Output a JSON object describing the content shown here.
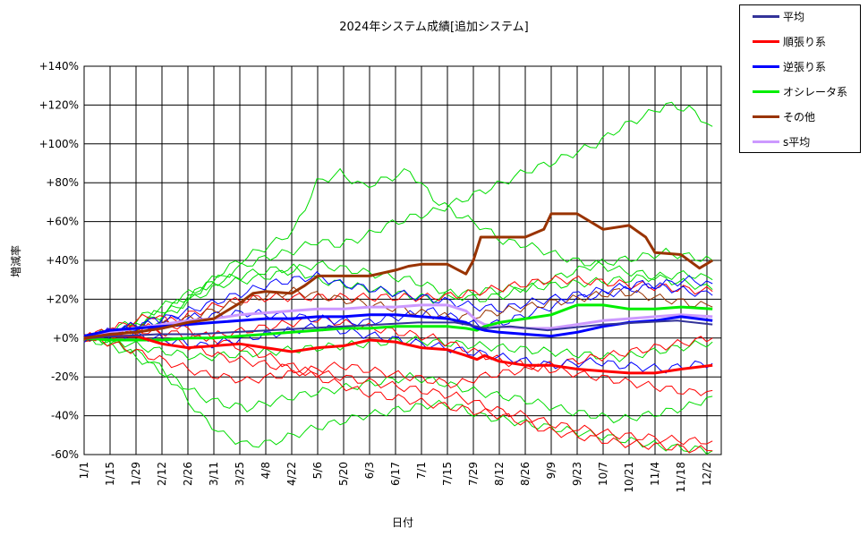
{
  "chart_data": {
    "type": "line",
    "title": "2024年システム成績[追加システム]",
    "xlabel": "日付",
    "ylabel": "増減率",
    "ylim": [
      -60,
      140
    ],
    "yticks": [
      -60,
      -40,
      -20,
      0,
      20,
      40,
      60,
      80,
      100,
      120,
      140
    ],
    "ytick_labels": [
      "-60%",
      "-40%",
      "-20%",
      "+0%",
      "+20%",
      "+40%",
      "+60%",
      "+80%",
      "+100%",
      "+120%",
      "+140%"
    ],
    "xtick_labels": [
      "1/1",
      "1/15",
      "1/29",
      "2/12",
      "2/26",
      "3/11",
      "3/25",
      "4/8",
      "4/22",
      "5/6",
      "5/20",
      "6/3",
      "6/17",
      "7/1",
      "7/15",
      "7/29",
      "8/12",
      "8/26",
      "9/9",
      "9/23",
      "10/7",
      "10/21",
      "11/4",
      "11/18",
      "12/2"
    ],
    "x_interval_days": 14,
    "x_end_day": 339,
    "grid": true,
    "legend_position": "top-right outside plot",
    "series": [
      {
        "name": "平均",
        "color": "#333399",
        "width": 2,
        "x": [
          0,
          20,
          40,
          60,
          80,
          100,
          120,
          140,
          160,
          180,
          200,
          212,
          216,
          230,
          250,
          260,
          280,
          300,
          320,
          339
        ],
        "values": [
          0,
          1,
          2,
          2,
          3,
          4,
          5,
          6,
          7,
          8,
          8,
          6,
          5,
          6,
          4,
          5,
          7,
          8,
          9,
          7
        ]
      },
      {
        "name": "順張り系",
        "color": "#ff0000",
        "width": 3,
        "x": [
          0,
          14,
          28,
          42,
          56,
          70,
          84,
          98,
          112,
          126,
          140,
          154,
          168,
          182,
          196,
          206,
          212,
          216,
          224,
          238,
          252,
          266,
          280,
          294,
          308,
          322,
          339
        ],
        "values": [
          0,
          1,
          1,
          -3,
          -5,
          -4,
          -3,
          -5,
          -7,
          -5,
          -4,
          -1,
          -2,
          -5,
          -6,
          -9,
          -11,
          -9,
          -12,
          -14,
          -14,
          -16,
          -17,
          -18,
          -18,
          -16,
          -14
        ]
      },
      {
        "name": "逆張り系",
        "color": "#0000ff",
        "width": 3,
        "x": [
          0,
          14,
          28,
          42,
          56,
          70,
          84,
          98,
          112,
          126,
          140,
          154,
          168,
          182,
          196,
          206,
          212,
          216,
          224,
          238,
          252,
          266,
          280,
          294,
          308,
          322,
          339
        ],
        "values": [
          1,
          4,
          5,
          6,
          7,
          8,
          9,
          10,
          10,
          11,
          11,
          12,
          12,
          11,
          10,
          8,
          5,
          4,
          3,
          2,
          1,
          3,
          6,
          8,
          9,
          11,
          9
        ]
      },
      {
        "name": "オシレータ系",
        "color": "#00ee00",
        "width": 3,
        "x": [
          0,
          14,
          28,
          42,
          56,
          70,
          84,
          98,
          112,
          126,
          140,
          154,
          168,
          182,
          196,
          206,
          212,
          216,
          224,
          238,
          252,
          266,
          280,
          294,
          308,
          322,
          339
        ],
        "values": [
          0,
          -1,
          -1,
          -1,
          0,
          0,
          1,
          2,
          3,
          4,
          5,
          5,
          6,
          6,
          6,
          5,
          4,
          6,
          8,
          10,
          12,
          17,
          17,
          15,
          15,
          16,
          15
        ]
      },
      {
        "name": "その他",
        "color": "#993300",
        "width": 3,
        "x": [
          0,
          14,
          28,
          42,
          56,
          70,
          77,
          84,
          91,
          98,
          112,
          119,
          126,
          140,
          154,
          168,
          175,
          182,
          196,
          206,
          210,
          214,
          222,
          238,
          248,
          252,
          266,
          280,
          294,
          303,
          308,
          322,
          332,
          339
        ],
        "values": [
          0,
          2,
          3,
          5,
          8,
          10,
          14,
          18,
          23,
          24,
          23,
          27,
          32,
          32,
          32,
          35,
          37,
          38,
          38,
          33,
          40,
          52,
          52,
          52,
          56,
          64,
          64,
          56,
          58,
          52,
          44,
          43,
          36,
          40
        ]
      },
      {
        "name": "s平均",
        "color": "#cc99ff",
        "width": 3,
        "x": [
          0,
          14,
          28,
          42,
          56,
          70,
          84,
          98,
          112,
          126,
          140,
          154,
          168,
          182,
          196,
          206,
          212,
          216,
          224,
          238,
          252,
          266,
          280,
          294,
          308,
          322,
          339
        ],
        "values": [
          1,
          3,
          5,
          7,
          9,
          10,
          12,
          13,
          14,
          15,
          15,
          16,
          16,
          17,
          17,
          14,
          9,
          7,
          6,
          5,
          5,
          7,
          9,
          10,
          11,
          12,
          11
        ]
      }
    ],
    "individual_systems": [
      {
        "color": "#00dd00",
        "values": [
          0,
          2,
          5,
          12,
          18,
          25,
          32,
          38,
          42,
          45,
          50,
          48,
          52,
          58,
          62,
          65,
          70,
          75,
          80,
          86,
          90,
          95,
          100,
          108,
          114,
          120,
          118,
          109
        ]
      },
      {
        "color": "#00dd00",
        "values": [
          0,
          1,
          4,
          8,
          15,
          25,
          35,
          42,
          48,
          55,
          80,
          85,
          78,
          82,
          86,
          72,
          64,
          58,
          50,
          48,
          44,
          40,
          38,
          35,
          33,
          30,
          28,
          25
        ]
      },
      {
        "color": "#00dd00",
        "values": [
          0,
          -2,
          -6,
          -12,
          -25,
          -40,
          -50,
          -55,
          -54,
          -50,
          -46,
          -43,
          -40,
          -38,
          -36,
          -34,
          -35,
          -40,
          -42,
          -44,
          -46,
          -48,
          -50,
          -52,
          -54,
          -56,
          -57,
          -58
        ]
      },
      {
        "color": "#00dd00",
        "values": [
          0,
          -3,
          -8,
          -15,
          -22,
          -30,
          -34,
          -36,
          -33,
          -30,
          -28,
          -26,
          -24,
          -22,
          -20,
          -22,
          -25,
          -28,
          -30,
          -32,
          -35,
          -38,
          -40,
          -42,
          -40,
          -38,
          -35,
          -30
        ]
      },
      {
        "color": "#00dd00",
        "values": [
          0,
          3,
          8,
          14,
          20,
          26,
          30,
          33,
          35,
          36,
          30,
          28,
          26,
          24,
          22,
          20,
          22,
          24,
          25,
          26,
          27,
          28,
          29,
          30,
          31,
          32,
          33,
          30
        ]
      },
      {
        "color": "#00dd00",
        "values": [
          0,
          -1,
          -3,
          -6,
          -8,
          -10,
          -9,
          -8,
          -7,
          -6,
          -5,
          -4,
          -3,
          -2,
          -1,
          -2,
          -3,
          -4,
          -5,
          -6,
          -7,
          -8,
          -9,
          -10,
          -8,
          -6,
          -4,
          -2
        ]
      },
      {
        "color": "#00dd00",
        "values": [
          0,
          2,
          6,
          10,
          16,
          22,
          28,
          30,
          32,
          35,
          38,
          36,
          34,
          32,
          30,
          26,
          22,
          20,
          22,
          26,
          30,
          34,
          38,
          40,
          42,
          44,
          42,
          40
        ]
      },
      {
        "color": "#ff0000",
        "values": [
          0,
          4,
          8,
          12,
          6,
          2,
          -2,
          -6,
          -10,
          -15,
          -20,
          -24,
          -28,
          -30,
          -32,
          -34,
          -36,
          -38,
          -40,
          -44,
          -48,
          -50,
          -52,
          -54,
          -55,
          -56,
          -57,
          -58
        ]
      },
      {
        "color": "#ff0000",
        "values": [
          0,
          2,
          5,
          3,
          -2,
          -6,
          -10,
          -12,
          -14,
          -16,
          -18,
          -20,
          -22,
          -24,
          -26,
          -28,
          -30,
          -34,
          -38,
          -40,
          -44,
          -46,
          -48,
          -50,
          -51,
          -52,
          -53,
          -53
        ]
      },
      {
        "color": "#ff0000",
        "values": [
          0,
          1,
          3,
          6,
          10,
          14,
          18,
          20,
          21,
          21,
          21,
          21,
          21,
          21,
          21,
          21,
          22,
          24,
          26,
          28,
          30,
          30,
          29,
          28,
          27,
          26,
          25,
          24
        ]
      },
      {
        "color": "#ff0000",
        "values": [
          0,
          -2,
          -6,
          -10,
          -14,
          -18,
          -20,
          -22,
          -20,
          -18,
          -16,
          -14,
          -16,
          -18,
          -20,
          -22,
          -24,
          -20,
          -18,
          -16,
          -14,
          -12,
          -10,
          -8,
          -6,
          -4,
          -2,
          0
        ]
      },
      {
        "color": "#ff0000",
        "values": [
          0,
          3,
          6,
          4,
          2,
          0,
          2,
          4,
          6,
          8,
          10,
          8,
          6,
          4,
          2,
          0,
          -4,
          -8,
          -12,
          -14,
          -16,
          -18,
          -20,
          -22,
          -24,
          -26,
          -28,
          -27
        ]
      },
      {
        "color": "#0000ff",
        "values": [
          0,
          2,
          5,
          8,
          12,
          16,
          20,
          24,
          28,
          30,
          32,
          28,
          26,
          24,
          22,
          20,
          18,
          16,
          15,
          18,
          20,
          22,
          24,
          26,
          28,
          26,
          24,
          22
        ]
      },
      {
        "color": "#0000ff",
        "values": [
          0,
          1,
          2,
          0,
          -2,
          -4,
          -2,
          0,
          2,
          4,
          6,
          4,
          2,
          0,
          -2,
          -4,
          -6,
          -8,
          -10,
          -12,
          -14,
          -13,
          -12,
          -14,
          -15,
          -16,
          -14,
          -13
        ]
      },
      {
        "color": "#0000ff",
        "values": [
          0,
          3,
          6,
          9,
          10,
          11,
          12,
          13,
          12,
          11,
          10,
          9,
          8,
          10,
          12,
          14,
          10,
          6,
          8,
          12,
          16,
          20,
          22,
          24,
          26,
          28,
          30,
          28
        ]
      },
      {
        "color": "#993300",
        "values": [
          0,
          2,
          4,
          6,
          8,
          12,
          16,
          20,
          22,
          24,
          22,
          20,
          18,
          16,
          14,
          12,
          10,
          12,
          14,
          16,
          18,
          20,
          22,
          24,
          22,
          20,
          18,
          16
        ]
      }
    ]
  }
}
